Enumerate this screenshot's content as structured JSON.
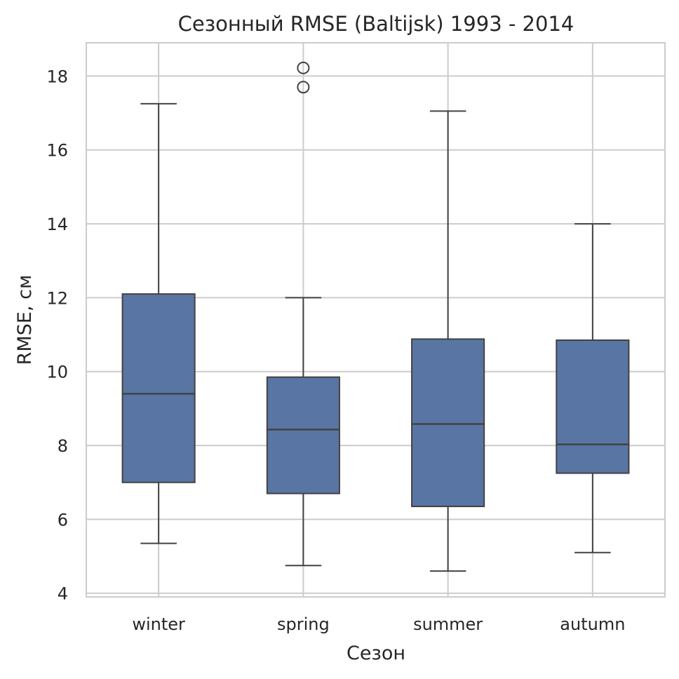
{
  "chart_data": {
    "type": "box",
    "title": "Сезонный RMSE (Baltijsk) 1993 - 2014",
    "xlabel": "Сезон",
    "ylabel": "RMSE, см",
    "ylim": [
      3.9,
      18.9
    ],
    "yticks": [
      4,
      6,
      8,
      10,
      12,
      14,
      16,
      18
    ],
    "categories": [
      "winter",
      "spring",
      "summer",
      "autumn"
    ],
    "grid": true,
    "box_color": "#5975a4",
    "line_color": "#424242",
    "grid_color": "#cccccc",
    "boxes": [
      {
        "category": "winter",
        "whisker_low": 5.35,
        "q1": 7.0,
        "median": 9.4,
        "q3": 12.1,
        "whisker_high": 17.25,
        "outliers": []
      },
      {
        "category": "spring",
        "whisker_low": 4.75,
        "q1": 6.7,
        "median": 8.43,
        "q3": 9.85,
        "whisker_high": 12.0,
        "outliers": [
          17.7,
          18.22
        ]
      },
      {
        "category": "summer",
        "whisker_low": 4.6,
        "q1": 6.35,
        "median": 8.58,
        "q3": 10.88,
        "whisker_high": 17.05,
        "outliers": []
      },
      {
        "category": "autumn",
        "whisker_low": 5.1,
        "q1": 7.25,
        "median": 8.03,
        "q3": 10.85,
        "whisker_high": 14.0,
        "outliers": []
      }
    ]
  }
}
